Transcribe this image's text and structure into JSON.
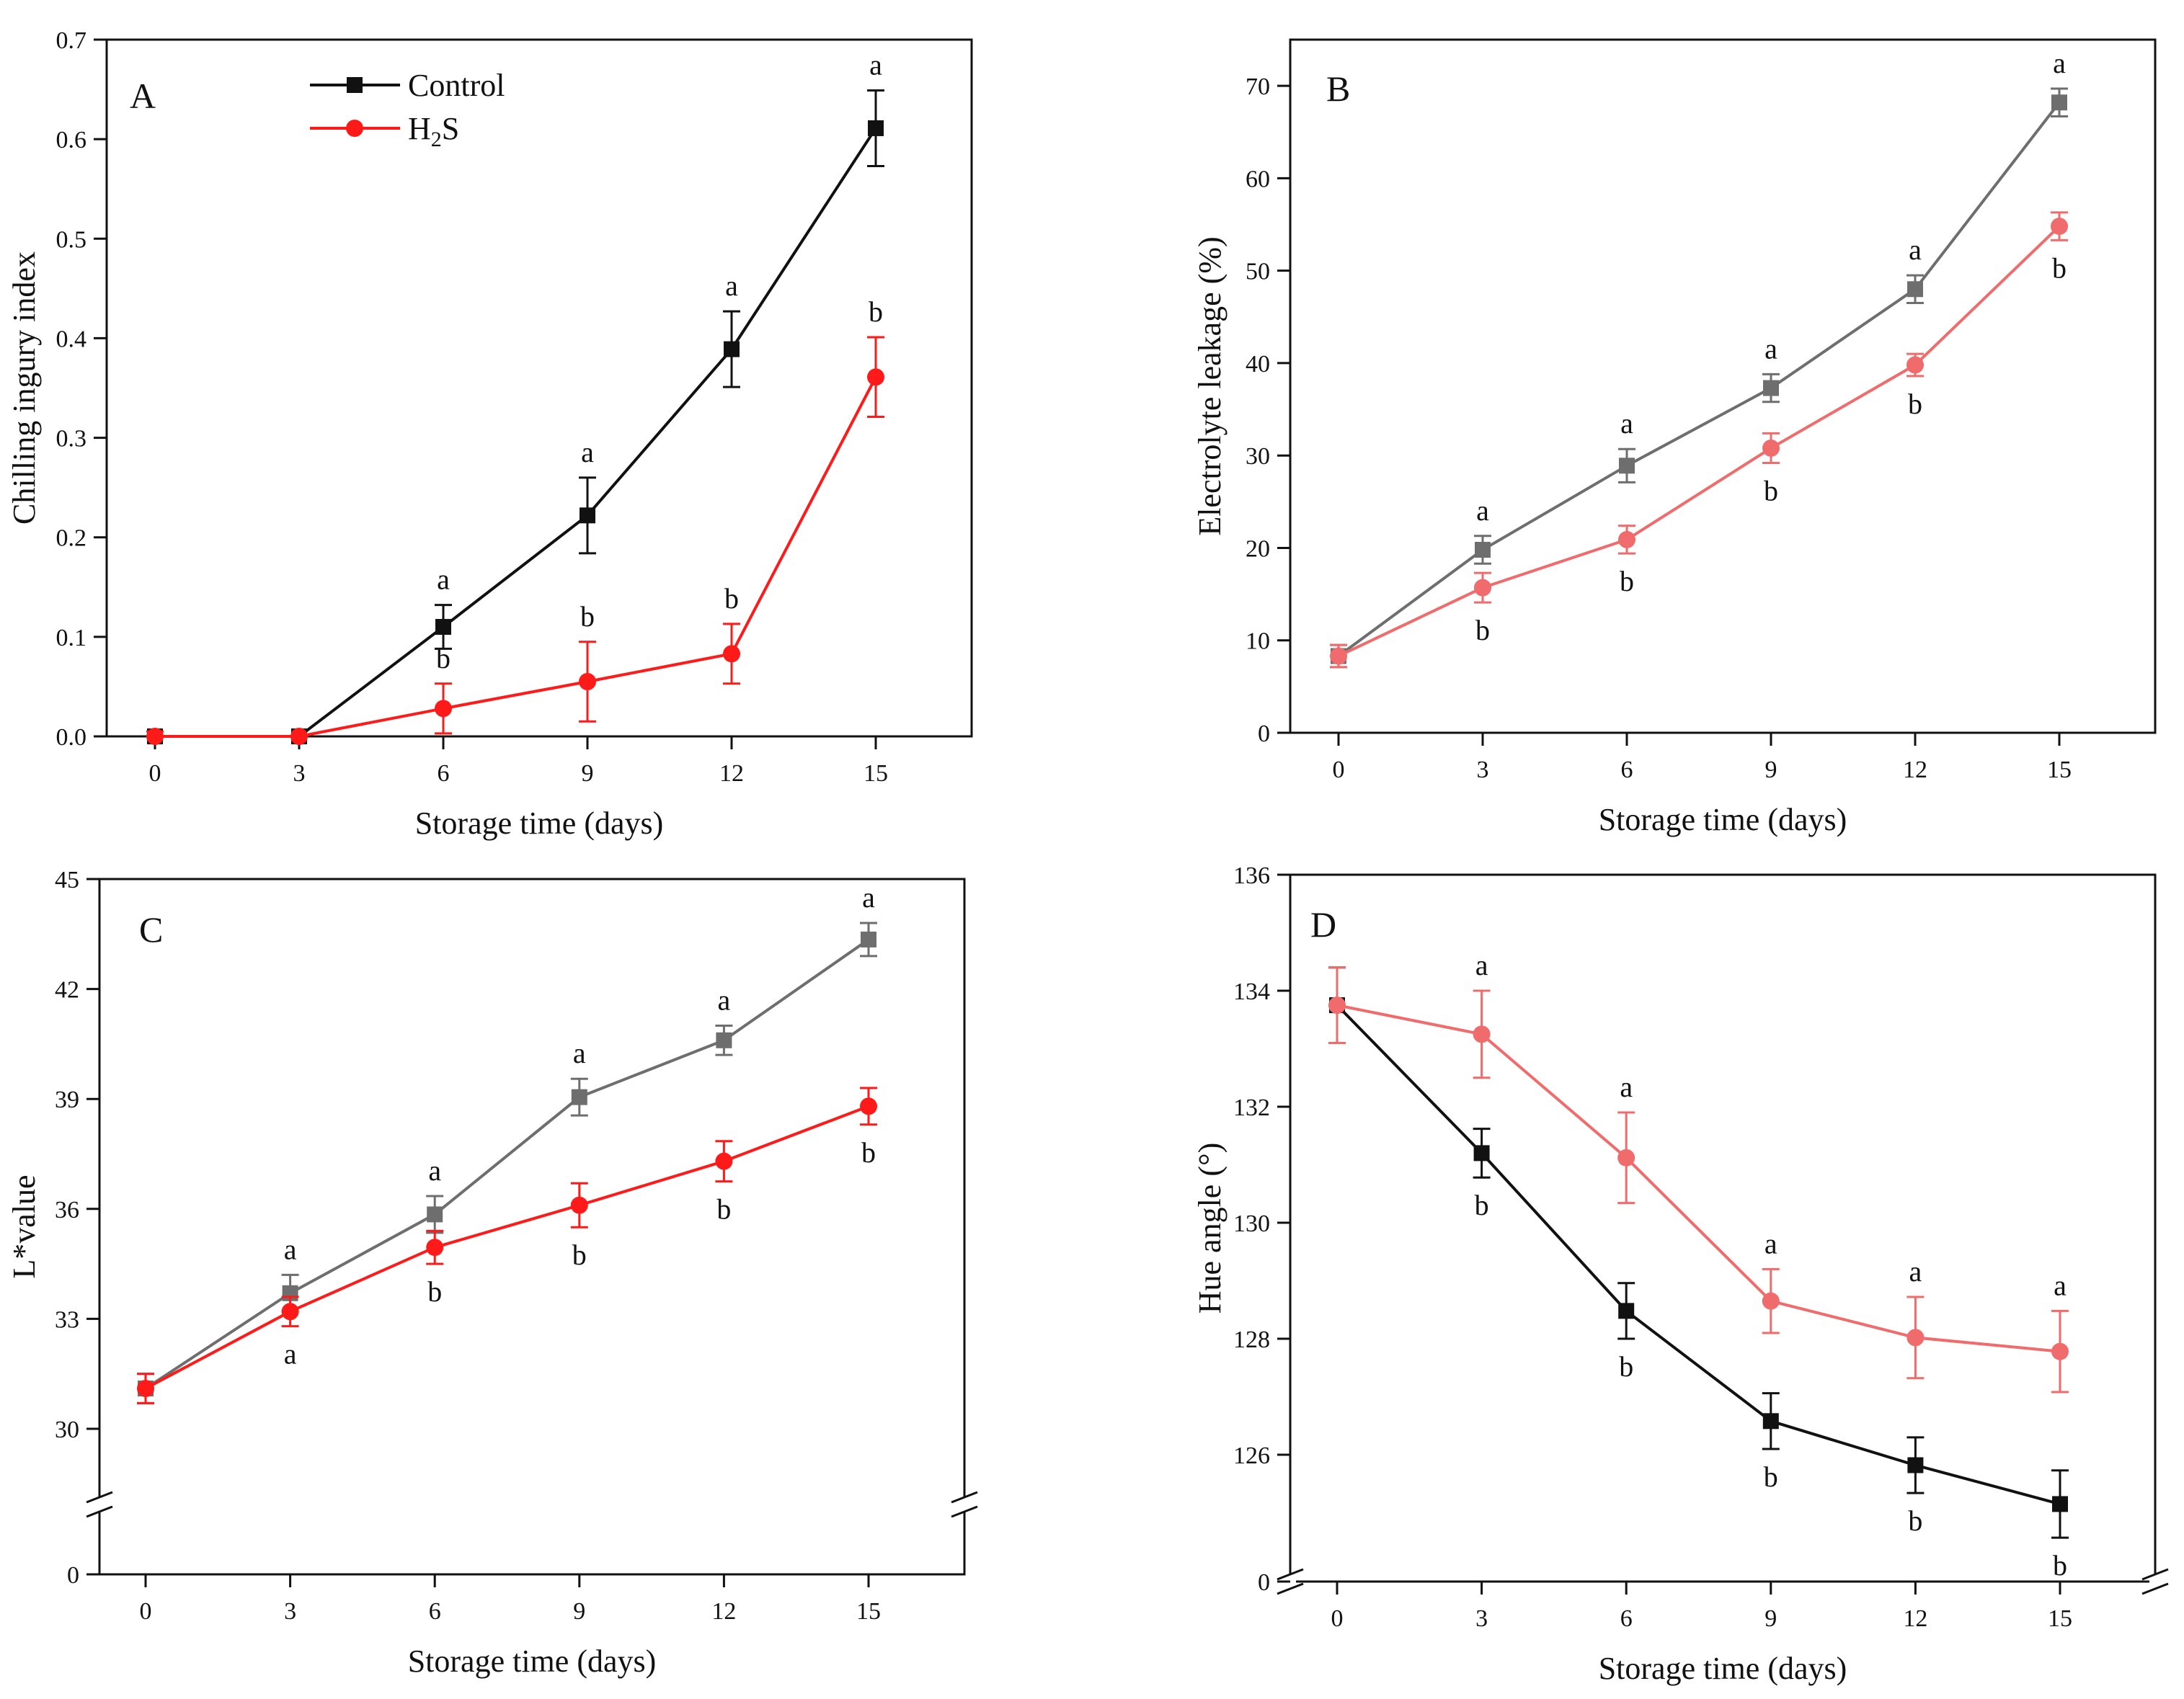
{
  "colors": {
    "control_dark": "#111111",
    "control_grey": "#6e6e6e",
    "h2s_red": "#ff1a1a",
    "h2s_pink": "#f06b6b"
  },
  "legend": {
    "control": "Control",
    "h2s_main": "H",
    "h2s_sub": "2",
    "h2s_end": "S"
  },
  "chart_data": [
    {
      "panel": "A",
      "type": "line",
      "xlabel": "Storage time (days)",
      "ylabel": "Chilling ingury index",
      "x": [
        0,
        3,
        6,
        9,
        12,
        15
      ],
      "ylim": [
        0,
        0.7
      ],
      "yticks": [
        0,
        0.1,
        0.2,
        0.3,
        0.4,
        0.5,
        0.6,
        0.7
      ],
      "ytick_labels": [
        "0.0",
        "0.1",
        "0.2",
        "0.3",
        "0.4",
        "0.5",
        "0.6",
        "0.7"
      ],
      "axis_break": false,
      "legend": "top-left",
      "series": [
        {
          "name": "Control",
          "color": "#111111",
          "marker": "square",
          "values": [
            0,
            0,
            0.11,
            0.222,
            0.389,
            0.611
          ],
          "errors": [
            0,
            0,
            0.022,
            0.038,
            0.038,
            0.038
          ],
          "letters": [
            "",
            "",
            "a",
            "a",
            "a",
            "a"
          ],
          "letter_pos": [
            "",
            "",
            "above",
            "above",
            "above",
            "above"
          ]
        },
        {
          "name": "H2S",
          "color": "#ff1a1a",
          "marker": "circle",
          "values": [
            0,
            0,
            0.028,
            0.055,
            0.083,
            0.361
          ],
          "errors": [
            0.005,
            0,
            0.025,
            0.04,
            0.03,
            0.04
          ],
          "letters": [
            "",
            "",
            "b",
            "b",
            "b",
            "b"
          ],
          "letter_pos": [
            "",
            "",
            "above",
            "above",
            "above",
            "above"
          ]
        }
      ]
    },
    {
      "panel": "B",
      "type": "line",
      "xlabel": "Storage time (days)",
      "ylabel": "Electrolyte leakage (%)",
      "x": [
        0,
        3,
        6,
        9,
        12,
        15
      ],
      "ylim": [
        0,
        75
      ],
      "yticks": [
        0,
        10,
        20,
        30,
        40,
        50,
        60,
        70
      ],
      "ytick_labels": [
        "0",
        "10",
        "20",
        "30",
        "40",
        "50",
        "60",
        "70"
      ],
      "axis_break": false,
      "series": [
        {
          "name": "Control",
          "color": "#6e6e6e",
          "marker": "square",
          "values": [
            8.3,
            19.8,
            28.9,
            37.3,
            48.0,
            68.2
          ],
          "errors": [
            1.2,
            1.5,
            1.8,
            1.5,
            1.5,
            1.5
          ],
          "letters": [
            "",
            "a",
            "a",
            "a",
            "a",
            "a"
          ],
          "letter_pos": [
            "",
            "above",
            "above",
            "above",
            "above",
            "above"
          ]
        },
        {
          "name": "H2S",
          "color": "#f06b6b",
          "marker": "circle",
          "values": [
            8.3,
            15.7,
            20.9,
            30.8,
            39.8,
            54.8
          ],
          "errors": [
            1.2,
            1.6,
            1.5,
            1.6,
            1.2,
            1.5
          ],
          "letters": [
            "",
            "b",
            "b",
            "b",
            "b",
            "b"
          ],
          "letter_pos": [
            "",
            "below",
            "below",
            "below",
            "below",
            "below"
          ]
        }
      ]
    },
    {
      "panel": "C",
      "type": "line",
      "xlabel": "Storage time (days)",
      "ylabel": "L*value",
      "x": [
        0,
        3,
        6,
        9,
        12,
        15
      ],
      "ylim": [
        0,
        45
      ],
      "yticks": [
        0,
        30,
        33,
        36,
        39,
        42,
        45
      ],
      "ytick_labels": [
        "0",
        "30",
        "33",
        "36",
        "39",
        "42",
        "45"
      ],
      "axis_break": true,
      "series": [
        {
          "name": "Control",
          "color": "#6e6e6e",
          "marker": "square",
          "values": [
            31.1,
            33.7,
            35.85,
            39.05,
            40.6,
            43.35
          ],
          "errors": [
            0.4,
            0.5,
            0.5,
            0.5,
            0.4,
            0.45
          ],
          "letters": [
            "",
            "a",
            "a",
            "a",
            "a",
            "a"
          ],
          "letter_pos": [
            "",
            "above",
            "above",
            "above",
            "above",
            "above"
          ]
        },
        {
          "name": "H2S",
          "color": "#ff1a1a",
          "marker": "circle",
          "values": [
            31.1,
            33.2,
            34.95,
            36.1,
            37.3,
            38.8
          ],
          "errors": [
            0.4,
            0.4,
            0.45,
            0.6,
            0.55,
            0.5
          ],
          "letters": [
            "",
            "a",
            "b",
            "b",
            "b",
            "b"
          ],
          "letter_pos": [
            "",
            "below",
            "below",
            "below",
            "below",
            "below"
          ]
        }
      ]
    },
    {
      "panel": "D",
      "type": "line",
      "xlabel": "Storage time (days)",
      "ylabel": "Hue angle (°)",
      "x": [
        0,
        3,
        6,
        9,
        12,
        15
      ],
      "ylim": [
        0,
        136
      ],
      "yticks": [
        0,
        126,
        128,
        130,
        132,
        134,
        136
      ],
      "ytick_labels": [
        "0",
        "126",
        "128",
        "130",
        "132",
        "134",
        "136"
      ],
      "axis_break": true,
      "series": [
        {
          "name": "Control",
          "color": "#111111",
          "marker": "square",
          "values": [
            133.75,
            131.2,
            128.48,
            126.58,
            125.82,
            125.15
          ],
          "errors": [
            0.65,
            0.42,
            0.48,
            0.48,
            0.48,
            0.58
          ],
          "letters": [
            "",
            "b",
            "b",
            "b",
            "b",
            "b"
          ],
          "letter_pos": [
            "",
            "below",
            "below",
            "below",
            "below",
            "below"
          ]
        },
        {
          "name": "H2S",
          "color": "#f06b6b",
          "marker": "circle",
          "values": [
            133.75,
            133.25,
            131.12,
            128.65,
            128.02,
            127.78
          ],
          "errors": [
            0.65,
            0.75,
            0.78,
            0.55,
            0.7,
            0.7
          ],
          "letters": [
            "",
            "a",
            "a",
            "a",
            "a",
            "a"
          ],
          "letter_pos": [
            "",
            "above",
            "above",
            "above",
            "above",
            "above"
          ]
        }
      ]
    }
  ]
}
